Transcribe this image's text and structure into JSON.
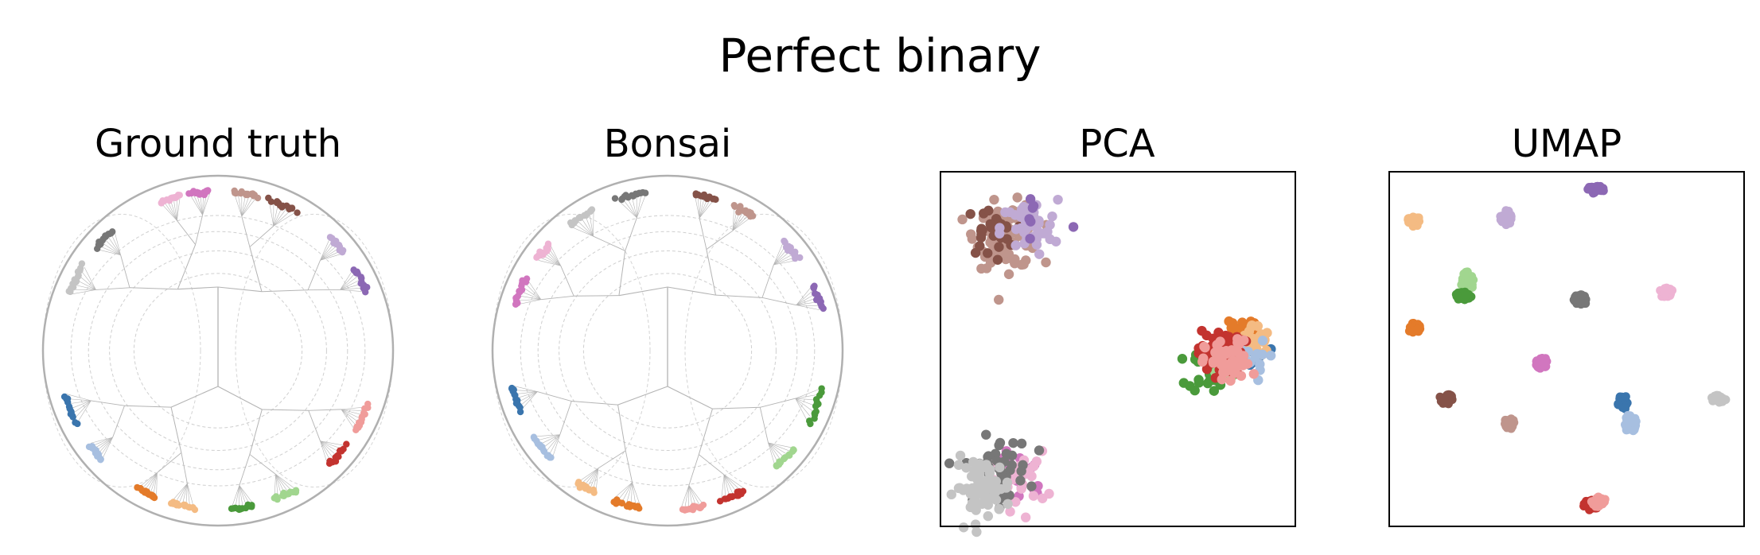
{
  "figure": {
    "title": "Perfect binary"
  },
  "colors": {
    "blue": "#3a75ad",
    "light_blue": "#a7bfe0",
    "orange": "#e47b2a",
    "light_orange": "#f4bb83",
    "green": "#4a9a3b",
    "light_green": "#a1d68f",
    "red": "#c3332f",
    "light_red": "#f09c9a",
    "purple": "#8c68b4",
    "light_purple": "#c0aad4",
    "brown": "#855248",
    "light_brown": "#bf958c",
    "pink": "#d176bf",
    "light_pink": "#eeb3d3",
    "gray": "#777777",
    "light_gray": "#c4c4c4",
    "tree_edge": "#b4b4b4",
    "disk_border": "#b0b0b0",
    "frame": "#000000"
  },
  "chart_data": [
    {
      "type": "scatter",
      "title": "Ground truth",
      "subtype": "hyperbolic-tree-embedding",
      "boundary_circle": true,
      "axes": false,
      "leaf_clusters": [
        {
          "color": "light_pink",
          "angle_start": 104,
          "angle_end": 111
        },
        {
          "color": "pink",
          "angle_start": 93,
          "angle_end": 100
        },
        {
          "color": "light_brown",
          "angle_start": 76,
          "angle_end": 84
        },
        {
          "color": "brown",
          "angle_start": 61,
          "angle_end": 71
        },
        {
          "color": "light_purple",
          "angle_start": 38,
          "angle_end": 45
        },
        {
          "color": "purple",
          "angle_start": 22,
          "angle_end": 31
        },
        {
          "color": "gray",
          "angle_start": 131,
          "angle_end": 140
        },
        {
          "color": "light_gray",
          "angle_start": 148,
          "angle_end": 159
        },
        {
          "color": "blue",
          "angle_start": 196,
          "angle_end": 207
        },
        {
          "color": "light_blue",
          "angle_start": 216,
          "angle_end": 223
        },
        {
          "color": "orange",
          "angle_start": 240,
          "angle_end": 247
        },
        {
          "color": "light_orange",
          "angle_start": 253,
          "angle_end": 261
        },
        {
          "color": "green",
          "angle_start": 275,
          "angle_end": 283
        },
        {
          "color": "light_green",
          "angle_start": 291,
          "angle_end": 299
        },
        {
          "color": "red",
          "angle_start": 314,
          "angle_end": 323
        },
        {
          "color": "light_red",
          "angle_start": 330,
          "angle_end": 339
        }
      ]
    },
    {
      "type": "scatter",
      "title": "Bonsai",
      "subtype": "hyperbolic-tree-embedding",
      "boundary_circle": true,
      "axes": false,
      "leaf_clusters": [
        {
          "color": "gray",
          "angle_start": 98,
          "angle_end": 108
        },
        {
          "color": "brown",
          "angle_start": 73,
          "angle_end": 80
        },
        {
          "color": "light_brown",
          "angle_start": 58,
          "angle_end": 65
        },
        {
          "color": "light_gray",
          "angle_start": 118,
          "angle_end": 128
        },
        {
          "color": "light_pink",
          "angle_start": 138,
          "angle_end": 145
        },
        {
          "color": "pink",
          "angle_start": 153,
          "angle_end": 163
        },
        {
          "color": "light_purple",
          "angle_start": 35,
          "angle_end": 43
        },
        {
          "color": "purple",
          "angle_start": 15,
          "angle_end": 24
        },
        {
          "color": "blue",
          "angle_start": 193,
          "angle_end": 202
        },
        {
          "color": "light_blue",
          "angle_start": 213,
          "angle_end": 223
        },
        {
          "color": "light_orange",
          "angle_start": 236,
          "angle_end": 243
        },
        {
          "color": "orange",
          "angle_start": 250,
          "angle_end": 260
        },
        {
          "color": "light_red",
          "angle_start": 275,
          "angle_end": 283
        },
        {
          "color": "red",
          "angle_start": 290,
          "angle_end": 299
        },
        {
          "color": "light_green",
          "angle_start": 313,
          "angle_end": 322
        },
        {
          "color": "green",
          "angle_start": 333,
          "angle_end": 346
        }
      ]
    },
    {
      "type": "scatter",
      "title": "PCA",
      "axes": "frame-only",
      "xlim": [
        0,
        1
      ],
      "ylim": [
        0,
        1
      ],
      "clusters": [
        {
          "color": "light_brown",
          "x": 0.19,
          "y": 0.82,
          "spread": 0.045,
          "n": 90
        },
        {
          "color": "brown",
          "x": 0.14,
          "y": 0.83,
          "spread": 0.035,
          "n": 28
        },
        {
          "color": "light_purple",
          "x": 0.25,
          "y": 0.84,
          "spread": 0.04,
          "n": 45
        },
        {
          "color": "purple",
          "x": 0.27,
          "y": 0.87,
          "spread": 0.06,
          "n": 7
        },
        {
          "color": "blue",
          "x": 0.88,
          "y": 0.5,
          "spread": 0.03,
          "n": 22
        },
        {
          "color": "orange",
          "x": 0.84,
          "y": 0.55,
          "spread": 0.03,
          "n": 25
        },
        {
          "color": "light_orange",
          "x": 0.88,
          "y": 0.52,
          "spread": 0.025,
          "n": 40
        },
        {
          "color": "green",
          "x": 0.76,
          "y": 0.44,
          "spread": 0.03,
          "n": 30
        },
        {
          "color": "light_green",
          "x": 0.8,
          "y": 0.45,
          "spread": 0.025,
          "n": 25
        },
        {
          "color": "light_blue",
          "x": 0.86,
          "y": 0.47,
          "spread": 0.03,
          "n": 15
        },
        {
          "color": "red",
          "x": 0.79,
          "y": 0.49,
          "spread": 0.032,
          "n": 55
        },
        {
          "color": "light_red",
          "x": 0.81,
          "y": 0.46,
          "spread": 0.032,
          "n": 60
        },
        {
          "color": "pink",
          "x": 0.22,
          "y": 0.15,
          "spread": 0.04,
          "n": 25
        },
        {
          "color": "light_pink",
          "x": 0.22,
          "y": 0.13,
          "spread": 0.04,
          "n": 30
        },
        {
          "color": "gray",
          "x": 0.16,
          "y": 0.16,
          "spread": 0.045,
          "n": 45
        },
        {
          "color": "light_gray",
          "x": 0.12,
          "y": 0.11,
          "spread": 0.04,
          "n": 70
        }
      ]
    },
    {
      "type": "scatter",
      "title": "UMAP",
      "axes": "frame-only",
      "xlim": [
        0,
        1
      ],
      "ylim": [
        0,
        1
      ],
      "clusters": [
        {
          "color": "purple",
          "x": 0.58,
          "y": 0.95,
          "rx": 0.025,
          "ry": 0.012
        },
        {
          "color": "light_orange",
          "x": 0.07,
          "y": 0.86,
          "rx": 0.02,
          "ry": 0.015
        },
        {
          "color": "light_purple",
          "x": 0.33,
          "y": 0.87,
          "rx": 0.018,
          "ry": 0.022
        },
        {
          "color": "light_green",
          "x": 0.22,
          "y": 0.69,
          "rx": 0.018,
          "ry": 0.028
        },
        {
          "color": "green",
          "x": 0.21,
          "y": 0.65,
          "rx": 0.025,
          "ry": 0.012
        },
        {
          "color": "gray",
          "x": 0.54,
          "y": 0.64,
          "rx": 0.02,
          "ry": 0.015
        },
        {
          "color": "light_pink",
          "x": 0.78,
          "y": 0.66,
          "rx": 0.02,
          "ry": 0.015
        },
        {
          "color": "orange",
          "x": 0.07,
          "y": 0.56,
          "rx": 0.018,
          "ry": 0.015
        },
        {
          "color": "pink",
          "x": 0.43,
          "y": 0.46,
          "rx": 0.016,
          "ry": 0.018
        },
        {
          "color": "brown",
          "x": 0.16,
          "y": 0.36,
          "rx": 0.018,
          "ry": 0.016
        },
        {
          "color": "blue",
          "x": 0.66,
          "y": 0.35,
          "rx": 0.016,
          "ry": 0.02
        },
        {
          "color": "light_blue",
          "x": 0.68,
          "y": 0.29,
          "rx": 0.016,
          "ry": 0.028
        },
        {
          "color": "light_gray",
          "x": 0.93,
          "y": 0.36,
          "rx": 0.022,
          "ry": 0.012
        },
        {
          "color": "light_brown",
          "x": 0.34,
          "y": 0.29,
          "rx": 0.016,
          "ry": 0.016
        },
        {
          "color": "red",
          "x": 0.57,
          "y": 0.06,
          "rx": 0.022,
          "ry": 0.016
        },
        {
          "color": "light_red",
          "x": 0.59,
          "y": 0.07,
          "rx": 0.02,
          "ry": 0.016
        }
      ]
    }
  ]
}
